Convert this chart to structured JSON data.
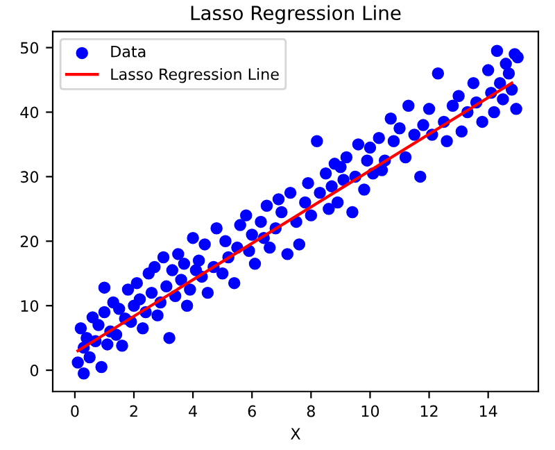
{
  "chart_data": {
    "type": "scatter",
    "title": "Lasso Regression Line",
    "xlabel": "X",
    "xlim": [
      -0.75,
      15.7
    ],
    "ylim": [
      -3.3,
      52.5
    ],
    "xticks": [
      0,
      2,
      4,
      6,
      8,
      10,
      12,
      14
    ],
    "yticks": [
      0,
      10,
      20,
      30,
      40,
      50
    ],
    "legend": "top left",
    "grid": false,
    "marker": "circle",
    "series": [
      {
        "name": "Data",
        "color": "#0000ff",
        "x": [
          0.1,
          0.2,
          0.3,
          0.3,
          0.4,
          0.5,
          0.6,
          0.7,
          0.8,
          0.9,
          1.0,
          1.0,
          1.1,
          1.2,
          1.3,
          1.4,
          1.5,
          1.6,
          1.7,
          1.8,
          1.9,
          2.0,
          2.1,
          2.2,
          2.3,
          2.4,
          2.5,
          2.6,
          2.7,
          2.8,
          2.9,
          3.0,
          3.1,
          3.2,
          3.3,
          3.4,
          3.5,
          3.6,
          3.7,
          3.8,
          3.9,
          4.0,
          4.1,
          4.2,
          4.3,
          4.4,
          4.5,
          4.7,
          4.8,
          5.0,
          5.1,
          5.2,
          5.4,
          5.5,
          5.6,
          5.8,
          5.9,
          6.0,
          6.1,
          6.3,
          6.4,
          6.5,
          6.6,
          6.8,
          6.9,
          7.0,
          7.2,
          7.3,
          7.5,
          7.6,
          7.8,
          7.9,
          8.0,
          8.2,
          8.3,
          8.5,
          8.6,
          8.7,
          8.8,
          8.9,
          9.0,
          9.1,
          9.2,
          9.4,
          9.5,
          9.6,
          9.8,
          9.9,
          10.0,
          10.1,
          10.3,
          10.4,
          10.5,
          10.7,
          10.8,
          11.0,
          11.2,
          11.3,
          11.5,
          11.7,
          11.8,
          12.0,
          12.1,
          12.3,
          12.5,
          12.6,
          12.8,
          13.0,
          13.1,
          13.3,
          13.5,
          13.6,
          13.8,
          14.0,
          14.1,
          14.2,
          14.3,
          14.4,
          14.5,
          14.6,
          14.7,
          14.8,
          14.9,
          14.95,
          15.0
        ],
        "values": [
          1.2,
          6.5,
          -0.5,
          3.5,
          5.0,
          2.0,
          8.2,
          4.5,
          7.0,
          0.5,
          12.8,
          9.0,
          4.0,
          6.0,
          10.5,
          5.5,
          9.5,
          3.8,
          8.0,
          12.5,
          7.5,
          10.0,
          13.5,
          11.0,
          6.5,
          9.0,
          15.0,
          12.0,
          16.0,
          8.5,
          10.5,
          17.5,
          13.0,
          5.0,
          15.5,
          11.5,
          18.0,
          14.0,
          16.5,
          10.0,
          12.5,
          20.5,
          15.5,
          17.0,
          14.5,
          19.5,
          12.0,
          16.0,
          22.0,
          15.0,
          20.0,
          17.5,
          13.5,
          19.0,
          22.5,
          24.0,
          18.5,
          21.0,
          16.5,
          23.0,
          20.5,
          25.5,
          19.0,
          22.0,
          26.5,
          24.5,
          18.0,
          27.5,
          23.0,
          19.5,
          26.0,
          29.0,
          24.0,
          35.5,
          27.5,
          30.5,
          25.0,
          28.5,
          32.0,
          26.0,
          31.5,
          29.5,
          33.0,
          24.5,
          30.0,
          35.0,
          28.0,
          32.5,
          34.5,
          30.5,
          36.0,
          31.0,
          32.5,
          39.0,
          35.5,
          37.5,
          33.0,
          41.0,
          36.5,
          30.0,
          38.0,
          40.5,
          36.5,
          46.0,
          38.5,
          35.5,
          41.0,
          42.5,
          37.0,
          40.0,
          44.5,
          41.5,
          38.5,
          46.5,
          43.0,
          40.0,
          49.5,
          44.5,
          42.0,
          47.5,
          46.0,
          43.5,
          49.0,
          40.5,
          48.5
        ]
      },
      {
        "name": "Lasso Regression Line",
        "type": "line",
        "color": "#ff0000",
        "marker": "none",
        "line_style": "solid",
        "x": [
          0.1,
          14.8
        ],
        "values": [
          3.0,
          44.5
        ]
      }
    ]
  }
}
